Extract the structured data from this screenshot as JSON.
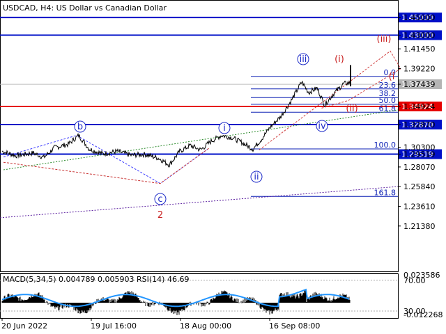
{
  "header": {
    "title": "USDCAD, H4:  US Dollar vs Canadian Dollar",
    "indicator": "MACD(5,34,5) 0.004789 0.005903 RSI(14) 46.69"
  },
  "colors": {
    "level_blue": "#0010c8",
    "level_red": "#e60000",
    "fib_blue": "#0a1eb4",
    "wave_blue": "#1e2cc8",
    "wave_red": "#c81e1e",
    "price_tag_gray": "#b4b4b4",
    "macd_blue": "#2396ff"
  },
  "chart_data": {
    "type": "line",
    "instrument": "USDCAD",
    "timeframe": "H4",
    "ylim": [
      1.19,
      1.458
    ],
    "y_ticks": [
      "1.45000",
      "1.43000",
      "1.41450",
      "1.39220",
      "1.37439",
      "1.34924",
      "1.32870",
      "1.30300",
      "1.29519",
      "1.28070",
      "1.25840",
      "1.23610",
      "1.21380"
    ],
    "x_ticks": [
      "20 Jun 2022",
      "19 Jul 16:00",
      "18 Aug 00:00",
      "16 Sep 08:00"
    ],
    "current_price": "1.37439",
    "levels": [
      {
        "label": "1.45000",
        "value": 1.45,
        "color": "blue"
      },
      {
        "label": "1.43000",
        "value": 1.43,
        "color": "blue"
      },
      {
        "label": "1.34924",
        "value": 1.34924,
        "color": "red"
      },
      {
        "label": "1.32870",
        "value": 1.3287,
        "color": "blue"
      },
      {
        "label": "1.29519",
        "value": 1.29519,
        "color": "blue"
      }
    ],
    "fibonacci": [
      {
        "label": "0.0",
        "value": 1.3833
      },
      {
        "label": "23.6",
        "value": 1.3691
      },
      {
        "label": "38.2",
        "value": 1.3593
      },
      {
        "label": "50.0",
        "value": 1.3517
      },
      {
        "label": "61.8",
        "value": 1.3427
      },
      {
        "label": "100.0",
        "value": 1.3011
      },
      {
        "label": "161.8",
        "value": 1.2473
      }
    ],
    "wave_labels": {
      "blue": [
        "b",
        "c",
        "i",
        "ii",
        "iii",
        "iv"
      ],
      "red": [
        "2",
        "(i)",
        "(ii)",
        "(iii)",
        "(i"
      ]
    },
    "price_path": [
      [
        0,
        1.2985
      ],
      [
        20,
        1.2935
      ],
      [
        45,
        1.2965
      ],
      [
        60,
        1.2915
      ],
      [
        75,
        1.3025
      ],
      [
        95,
        1.3065
      ],
      [
        110,
        1.3165
      ],
      [
        125,
        1.301
      ],
      [
        145,
        1.2955
      ],
      [
        165,
        1.2985
      ],
      [
        185,
        1.294
      ],
      [
        205,
        1.295
      ],
      [
        225,
        1.2905
      ],
      [
        240,
        1.283
      ],
      [
        255,
        1.2985
      ],
      [
        270,
        1.305
      ],
      [
        285,
        1.3
      ],
      [
        300,
        1.31
      ],
      [
        315,
        1.3165
      ],
      [
        330,
        1.314
      ],
      [
        345,
        1.308
      ],
      [
        360,
        1.301
      ],
      [
        372,
        1.312
      ],
      [
        385,
        1.326
      ],
      [
        400,
        1.338
      ],
      [
        415,
        1.356
      ],
      [
        430,
        1.377
      ],
      [
        440,
        1.365
      ],
      [
        452,
        1.37
      ],
      [
        463,
        1.351
      ],
      [
        475,
        1.363
      ],
      [
        490,
        1.375
      ],
      [
        500,
        1.376
      ]
    ],
    "macd": {
      "range": [
        -0.012268,
        0.023586
      ],
      "rsi_levels": [
        "70.00",
        "30.00"
      ],
      "labels": [
        "0.023586",
        "70.00",
        "30.00",
        "-0.012268"
      ]
    }
  }
}
